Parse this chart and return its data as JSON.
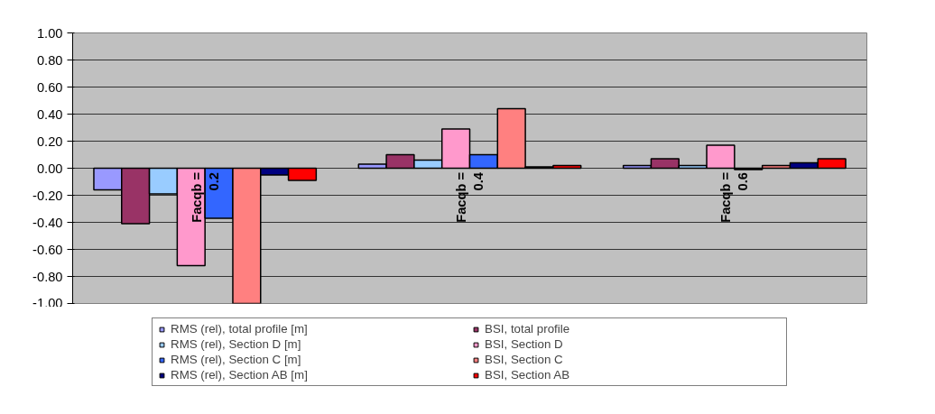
{
  "chart_data": {
    "type": "bar",
    "categories": [
      "Facqb = 0.2",
      "Facqb = 0.4",
      "Facqb = 0.6"
    ],
    "series": [
      {
        "name": "RMS (rel), total profile [m]",
        "color": "#9999ff",
        "values": [
          -0.16,
          0.03,
          0.02
        ]
      },
      {
        "name": "BSI, total profile",
        "color": "#993366",
        "values": [
          -0.41,
          0.1,
          0.07
        ]
      },
      {
        "name": "RMS (rel), Section D [m]",
        "color": "#99ccff",
        "values": [
          -0.19,
          0.06,
          0.02
        ]
      },
      {
        "name": "BSI, Section D",
        "color": "#ff99cc",
        "values": [
          -0.72,
          0.29,
          0.17
        ]
      },
      {
        "name": "RMS (rel), Section C [m]",
        "color": "#3366ff",
        "values": [
          -0.37,
          0.1,
          -0.01
        ]
      },
      {
        "name": "BSI, Section C",
        "color": "#ff8080",
        "values": [
          -1.0,
          0.44,
          0.02
        ]
      },
      {
        "name": "RMS (rel), Section AB [m]",
        "color": "#000080",
        "values": [
          -0.05,
          0.01,
          0.04
        ]
      },
      {
        "name": "BSI, Section AB",
        "color": "#ff0000",
        "values": [
          -0.09,
          0.02,
          0.07
        ]
      }
    ],
    "ylim": [
      -1.0,
      1.0
    ],
    "yticks": [
      {
        "value": -1.0,
        "label": "-1.00"
      },
      {
        "value": -0.8,
        "label": "-0.80"
      },
      {
        "value": -0.6,
        "label": "-0.60"
      },
      {
        "value": -0.4,
        "label": "-0.40"
      },
      {
        "value": -0.2,
        "label": "-0.20"
      },
      {
        "value": 0.0,
        "label": "0.00"
      },
      {
        "value": 0.2,
        "label": "0.20"
      },
      {
        "value": 0.4,
        "label": "0.40"
      },
      {
        "value": 0.6,
        "label": "0.60"
      },
      {
        "value": 0.8,
        "label": "0.80"
      },
      {
        "value": 1.0,
        "label": "1.00"
      }
    ],
    "grid": "y",
    "legend": "bottom"
  }
}
